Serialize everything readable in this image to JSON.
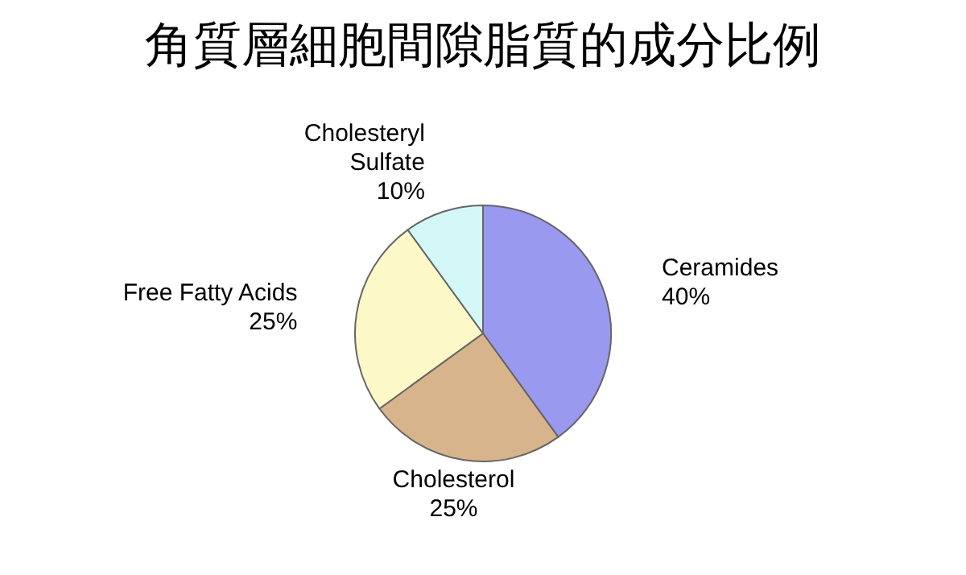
{
  "chart_data": {
    "type": "pie",
    "title": "角質層細胞間隙脂質的成分比例",
    "categories": [
      "Ceramides",
      "Cholesterol",
      "Free Fatty Acids",
      "Cholesteryl Sulfate"
    ],
    "values": [
      40,
      25,
      25,
      10
    ],
    "value_labels": [
      "40%",
      "25%",
      "25%",
      "10%"
    ],
    "colors": [
      "#9a99f0",
      "#d8b48c",
      "#fdf8c8",
      "#d4f8f8"
    ],
    "legend": false
  }
}
